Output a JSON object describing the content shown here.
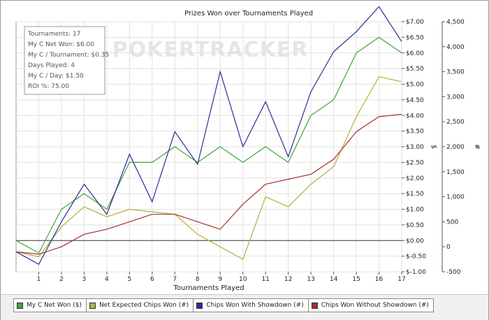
{
  "chart_data": {
    "type": "line",
    "title": "Prizes Won over Tournaments Played",
    "xlabel": "Tournaments Played",
    "ylabel_left": "$",
    "ylabel_right": "#",
    "x": [
      0,
      1,
      2,
      3,
      4,
      5,
      6,
      7,
      8,
      9,
      10,
      11,
      12,
      13,
      14,
      15,
      16,
      17
    ],
    "x_ticks": [
      1,
      2,
      3,
      4,
      5,
      6,
      7,
      8,
      9,
      10,
      11,
      12,
      13,
      14,
      15,
      16,
      17
    ],
    "y_left_range": [
      -1.0,
      7.0
    ],
    "y_left_ticks": [
      "$7.00",
      "$6.50",
      "$6.00",
      "$5.50",
      "$5.00",
      "$4.50",
      "$4.00",
      "$3.50",
      "$3.00",
      "$2.50",
      "$2.00",
      "$1.50",
      "$1.00",
      "$0.50",
      "$0.00",
      "$-0.50",
      "$-1.00"
    ],
    "y_right_range": [
      -500,
      4500
    ],
    "y_right_ticks": [
      "4,500",
      "4,000",
      "3,500",
      "3,000",
      "2,500",
      "2,000",
      "1,500",
      "1,000",
      "500",
      "0",
      "-500"
    ],
    "series": [
      {
        "name": "My C Net Won ($)",
        "axis": "left",
        "color": "#3aa63a",
        "values": [
          0.0,
          -0.4,
          1.0,
          1.5,
          1.0,
          2.5,
          2.5,
          3.0,
          2.5,
          3.0,
          2.5,
          3.0,
          2.5,
          4.0,
          4.5,
          6.0,
          6.5,
          6.0
        ]
      },
      {
        "name": "Net Expected Chips Won (#)",
        "axis": "right",
        "color": "#b0b03a",
        "values": [
          -100,
          -200,
          400,
          800,
          600,
          750,
          700,
          650,
          250,
          0,
          -250,
          1000,
          800,
          1250,
          1600,
          2600,
          3400,
          3300
        ]
      },
      {
        "name": "Chips Won With Showdown (#)",
        "axis": "right",
        "color": "#2c2c96",
        "values": [
          -100,
          -350,
          500,
          1250,
          650,
          1850,
          900,
          2300,
          1650,
          3500,
          2000,
          2900,
          1800,
          3100,
          3900,
          4300,
          4800,
          4100
        ]
      },
      {
        "name": "Chips Won Without Showdown (#)",
        "axis": "right",
        "color": "#a83030",
        "values": [
          -100,
          -150,
          0,
          250,
          350,
          500,
          650,
          650,
          500,
          350,
          850,
          1250,
          1350,
          1450,
          1750,
          2300,
          2600,
          2650
        ]
      }
    ],
    "grid": true,
    "legend_position": "bottom"
  },
  "stats": [
    "Tournaments: 17",
    "My C Net Won: $6.00",
    "My C / Tournament: $0.35",
    "Days Played: 4",
    "My C / Day: $1.50",
    "ROI %: 75.00"
  ],
  "watermark": "POKERTRACKER"
}
